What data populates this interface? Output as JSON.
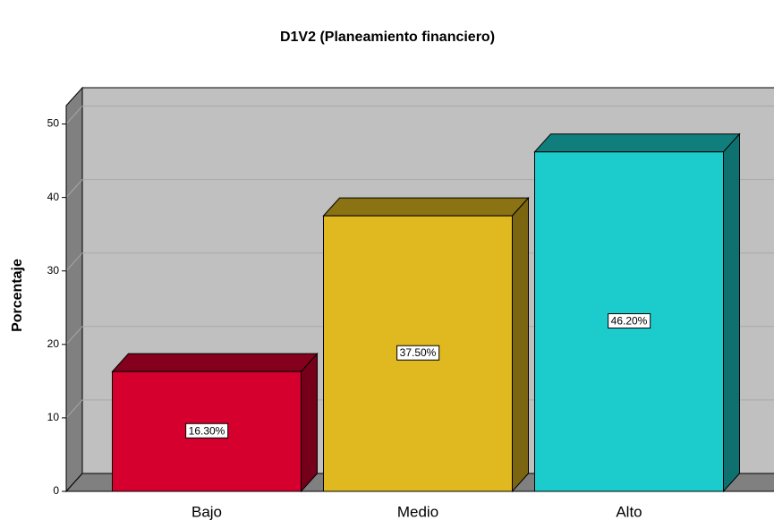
{
  "chart_data": {
    "type": "bar3d",
    "title": "D1V2 (Planeamiento financiero)",
    "y_label": "Porcentaje",
    "categories": [
      "Bajo",
      "Medio",
      "Alto"
    ],
    "values": [
      16.3,
      37.5,
      46.2
    ],
    "value_labels": [
      "16.30%",
      "37.50%",
      "46.20%"
    ],
    "colors": [
      "#d6002e",
      "#e0b81f",
      "#1ccccc"
    ],
    "ylim": [
      0,
      52.5
    ],
    "yticks": [
      0,
      10,
      20,
      30,
      40,
      50
    ],
    "grid": true
  }
}
